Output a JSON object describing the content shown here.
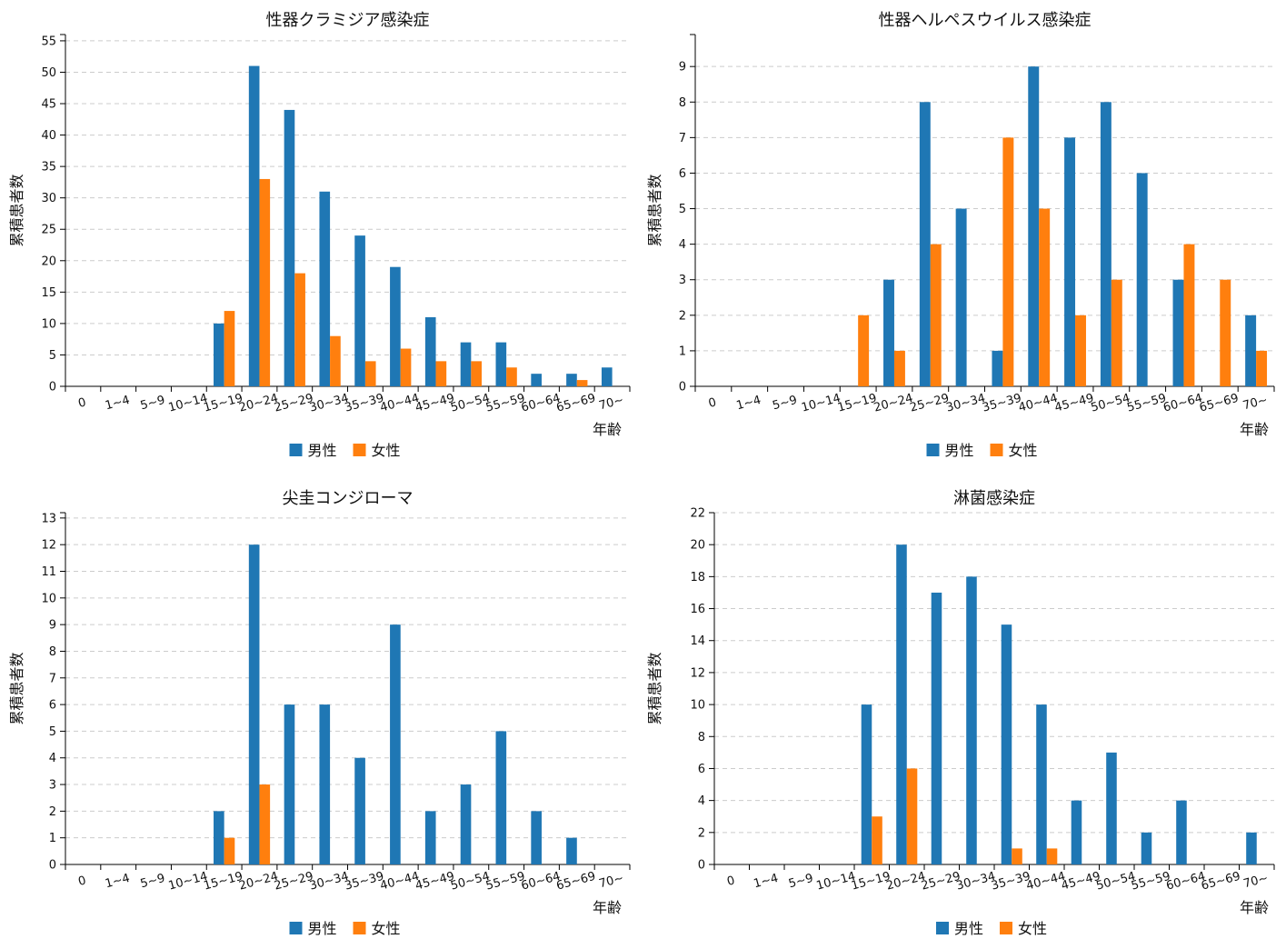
{
  "colors": {
    "male": "#1f77b4",
    "female": "#ff7f0e"
  },
  "chart_data": [
    {
      "type": "bar",
      "title": "性器クラミジア感染症",
      "ylabel": "累積患者数",
      "xlabel": "年齢",
      "categories": [
        "0",
        "1~4",
        "5~9",
        "10~14",
        "15~19",
        "20~24",
        "25~29",
        "30~34",
        "35~39",
        "40~44",
        "45~49",
        "50~54",
        "55~59",
        "60~64",
        "65~69",
        "70~"
      ],
      "ylim": [
        0,
        56
      ],
      "yticks": [
        0,
        5,
        10,
        15,
        20,
        25,
        30,
        35,
        40,
        45,
        50,
        55
      ],
      "legend_position": "bottom",
      "series": [
        {
          "name": "男性",
          "color": "#1f77b4",
          "values": [
            0,
            0,
            0,
            0,
            10,
            51,
            44,
            31,
            24,
            19,
            11,
            7,
            7,
            2,
            2,
            3
          ]
        },
        {
          "name": "女性",
          "color": "#ff7f0e",
          "values": [
            0,
            0,
            0,
            0,
            12,
            33,
            18,
            8,
            4,
            6,
            4,
            4,
            3,
            0,
            1,
            0
          ]
        }
      ]
    },
    {
      "type": "bar",
      "title": "性器ヘルペスウイルス感染症",
      "ylabel": "累積患者数",
      "xlabel": "年齢",
      "categories": [
        "0",
        "1~4",
        "5~9",
        "10~14",
        "15~19",
        "20~24",
        "25~29",
        "30~34",
        "35~39",
        "40~44",
        "45~49",
        "50~54",
        "55~59",
        "60~64",
        "65~69",
        "70~"
      ],
      "ylim": [
        0,
        9.9
      ],
      "yticks": [
        0,
        1,
        2,
        3,
        4,
        5,
        6,
        7,
        8,
        9
      ],
      "legend_position": "bottom",
      "series": [
        {
          "name": "男性",
          "color": "#1f77b4",
          "values": [
            0,
            0,
            0,
            0,
            0,
            3,
            8,
            5,
            1,
            9,
            7,
            8,
            6,
            3,
            0,
            2
          ]
        },
        {
          "name": "女性",
          "color": "#ff7f0e",
          "values": [
            0,
            0,
            0,
            0,
            2,
            1,
            4,
            0,
            7,
            5,
            2,
            3,
            0,
            4,
            3,
            1
          ]
        }
      ]
    },
    {
      "type": "bar",
      "title": "尖圭コンジローマ",
      "ylabel": "累積患者数",
      "xlabel": "年齢",
      "categories": [
        "0",
        "1~4",
        "5~9",
        "10~14",
        "15~19",
        "20~24",
        "25~29",
        "30~34",
        "35~39",
        "40~44",
        "45~49",
        "50~54",
        "55~59",
        "60~64",
        "65~69",
        "70~"
      ],
      "ylim": [
        0,
        13.2
      ],
      "yticks": [
        0,
        1,
        2,
        3,
        4,
        5,
        6,
        7,
        8,
        9,
        10,
        11,
        12,
        13
      ],
      "legend_position": "bottom",
      "series": [
        {
          "name": "男性",
          "color": "#1f77b4",
          "values": [
            0,
            0,
            0,
            0,
            2,
            12,
            6,
            6,
            4,
            9,
            2,
            3,
            5,
            2,
            1,
            0
          ]
        },
        {
          "name": "女性",
          "color": "#ff7f0e",
          "values": [
            0,
            0,
            0,
            0,
            1,
            3,
            0,
            0,
            0,
            0,
            0,
            0,
            0,
            0,
            0,
            0
          ]
        }
      ]
    },
    {
      "type": "bar",
      "title": "淋菌感染症",
      "ylabel": "累積患者数",
      "xlabel": "年齢",
      "categories": [
        "0",
        "1~4",
        "5~9",
        "10~14",
        "15~19",
        "20~24",
        "25~29",
        "30~34",
        "35~39",
        "40~44",
        "45~49",
        "50~54",
        "55~59",
        "60~64",
        "65~69",
        "70~"
      ],
      "ylim": [
        0,
        22
      ],
      "yticks": [
        0,
        2,
        4,
        6,
        8,
        10,
        12,
        14,
        16,
        18,
        20,
        22
      ],
      "legend_position": "bottom",
      "series": [
        {
          "name": "男性",
          "color": "#1f77b4",
          "values": [
            0,
            0,
            0,
            0,
            10,
            20,
            17,
            18,
            15,
            10,
            4,
            7,
            2,
            4,
            0,
            2
          ]
        },
        {
          "name": "女性",
          "color": "#ff7f0e",
          "values": [
            0,
            0,
            0,
            0,
            3,
            6,
            0,
            0,
            1,
            1,
            0,
            0,
            0,
            0,
            0,
            0
          ]
        }
      ]
    }
  ]
}
